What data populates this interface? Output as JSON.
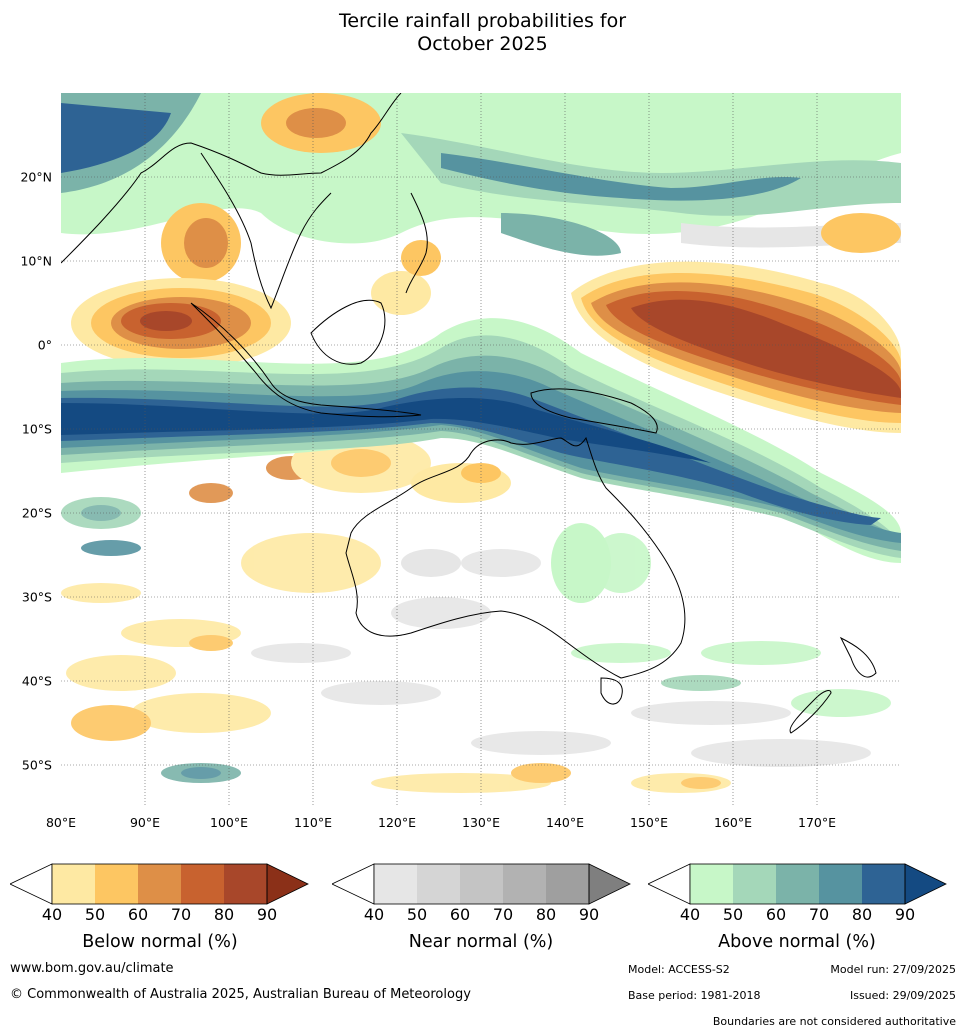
{
  "title_line1": "Tercile rainfall probabilities for",
  "title_line2": "October 2025",
  "lat_labels": [
    "20°N",
    "10°N",
    "0°",
    "10°S",
    "20°S",
    "30°S",
    "40°S",
    "50°S"
  ],
  "lon_labels": [
    "80°E",
    "90°E",
    "100°E",
    "110°E",
    "120°E",
    "130°E",
    "140°E",
    "150°E",
    "160°E",
    "170°E"
  ],
  "legend": {
    "below": {
      "label": "Below normal (%)",
      "ticks": [
        "40",
        "50",
        "60",
        "70",
        "80",
        "90"
      ],
      "colors": [
        "#fee9a3",
        "#fdc662",
        "#de8f47",
        "#c8622f",
        "#a8472a",
        "#8b3018"
      ]
    },
    "near": {
      "label": "Near normal (%)",
      "ticks": [
        "40",
        "50",
        "60",
        "70",
        "80",
        "90"
      ],
      "colors": [
        "#e6e6e6",
        "#d5d5d5",
        "#c4c4c4",
        "#b2b2b2",
        "#9f9f9f",
        "#7f7f7f"
      ]
    },
    "above": {
      "label": "Above normal (%)",
      "ticks": [
        "40",
        "50",
        "60",
        "70",
        "80",
        "90"
      ],
      "colors": [
        "#c7f7c8",
        "#a4d7b9",
        "#7bb3a9",
        "#5693a0",
        "#2e6394",
        "#144a82"
      ]
    }
  },
  "footer": {
    "url": "www.bom.gov.au/climate",
    "copyright": "© Commonwealth of Australia 2025, Australian Bureau of Meteorology",
    "model": "Model: ACCESS-S2",
    "model_run": "Model run: 27/09/2025",
    "base_period": "Base period: 1981-2018",
    "issued": "Issued: 29/09/2025",
    "disclaimer": "Boundaries are not considered authoritative"
  }
}
